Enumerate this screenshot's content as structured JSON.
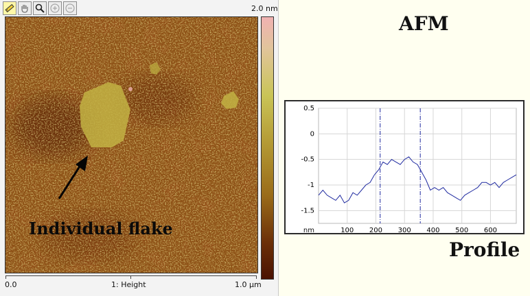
{
  "toolbar": {
    "tools": [
      {
        "name": "ruler-icon"
      },
      {
        "name": "pan-hand-icon"
      },
      {
        "name": "zoom-icon"
      },
      {
        "name": "zoom-in-icon"
      },
      {
        "name": "zoom-out-icon"
      }
    ]
  },
  "image": {
    "scale_max": "2.0 nm",
    "annotation": "Individual flake",
    "colors": {
      "dark": "#4a1202",
      "mid": "#9a6c1a",
      "light": "#c9c457",
      "highlight": "#f0b2b2"
    }
  },
  "axis": {
    "start": "0.0",
    "channel": "1: Height",
    "end": "1.0 µm"
  },
  "titles": {
    "afm": "AFM",
    "profile": "Profile"
  },
  "chart_data": {
    "type": "line",
    "title": "",
    "xlabel": "",
    "ylabel": "nm",
    "xlim": [
      0,
      690
    ],
    "ylim": [
      -1.75,
      0.5
    ],
    "x_ticks": [
      "100",
      "200",
      "300",
      "400",
      "500",
      "600"
    ],
    "y_ticks": [
      "0.5",
      "0",
      "-0.5",
      "-1",
      "-1.5"
    ],
    "y_unit_label": "nm",
    "markers_x": [
      215,
      355
    ],
    "series": [
      {
        "values": [
          [
            0,
            -1.2
          ],
          [
            15,
            -1.1
          ],
          [
            30,
            -1.2
          ],
          [
            45,
            -1.25
          ],
          [
            60,
            -1.3
          ],
          [
            75,
            -1.2
          ],
          [
            90,
            -1.35
          ],
          [
            105,
            -1.3
          ],
          [
            120,
            -1.15
          ],
          [
            135,
            -1.2
          ],
          [
            150,
            -1.1
          ],
          [
            165,
            -1.0
          ],
          [
            180,
            -0.95
          ],
          [
            195,
            -0.8
          ],
          [
            210,
            -0.7
          ],
          [
            225,
            -0.55
          ],
          [
            240,
            -0.6
          ],
          [
            255,
            -0.5
          ],
          [
            270,
            -0.55
          ],
          [
            285,
            -0.6
          ],
          [
            300,
            -0.5
          ],
          [
            315,
            -0.45
          ],
          [
            330,
            -0.55
          ],
          [
            345,
            -0.6
          ],
          [
            360,
            -0.75
          ],
          [
            375,
            -0.9
          ],
          [
            390,
            -1.1
          ],
          [
            405,
            -1.05
          ],
          [
            420,
            -1.1
          ],
          [
            435,
            -1.05
          ],
          [
            450,
            -1.15
          ],
          [
            465,
            -1.2
          ],
          [
            480,
            -1.25
          ],
          [
            495,
            -1.3
          ],
          [
            510,
            -1.2
          ],
          [
            525,
            -1.15
          ],
          [
            540,
            -1.1
          ],
          [
            555,
            -1.05
          ],
          [
            570,
            -0.95
          ],
          [
            585,
            -0.95
          ],
          [
            600,
            -1.0
          ],
          [
            615,
            -0.95
          ],
          [
            630,
            -1.05
          ],
          [
            645,
            -0.95
          ],
          [
            660,
            -0.9
          ],
          [
            675,
            -0.85
          ],
          [
            690,
            -0.8
          ]
        ]
      }
    ]
  }
}
